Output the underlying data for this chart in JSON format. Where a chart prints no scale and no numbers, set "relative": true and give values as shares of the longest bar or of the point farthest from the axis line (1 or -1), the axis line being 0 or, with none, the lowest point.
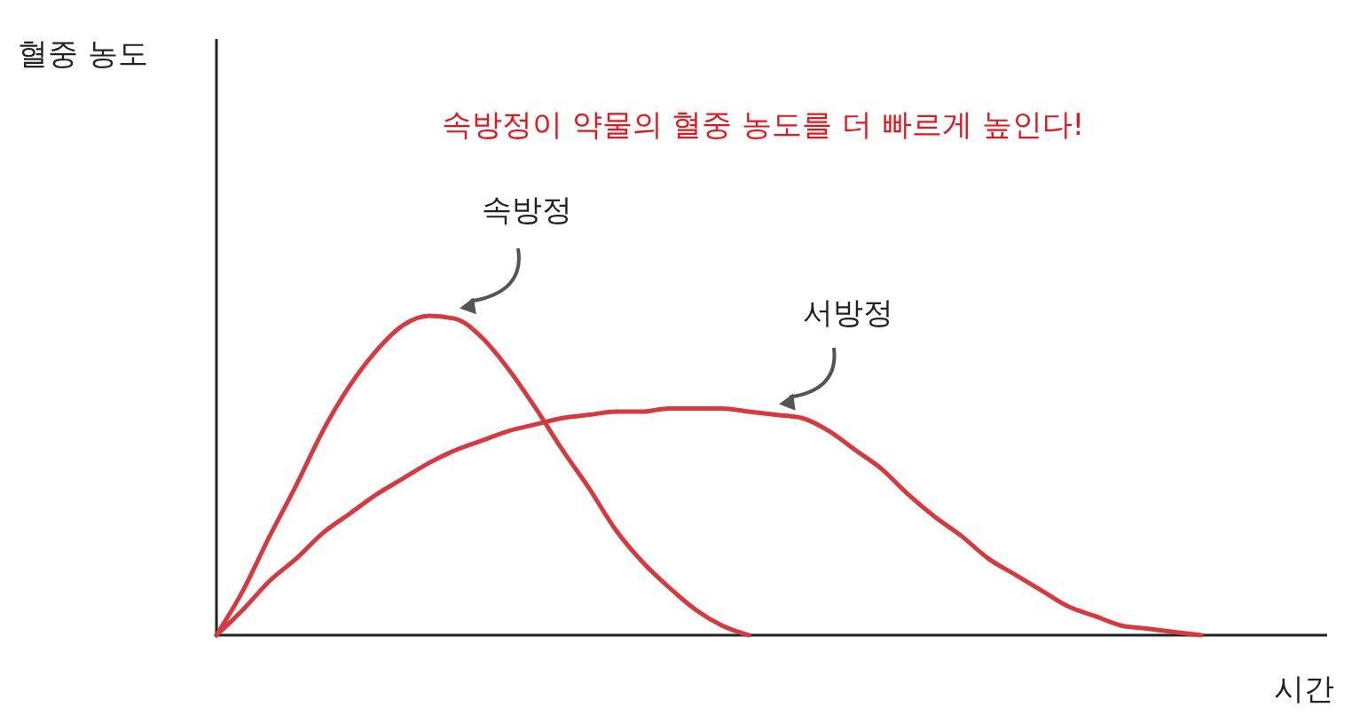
{
  "chart_data": {
    "type": "line",
    "relative": true,
    "title": "속방정이 약물의 혈중 농도를 더 빠르게 높인다!",
    "xlabel": "시간",
    "annotations": [
      "혈중 농도"
    ],
    "legend": false,
    "categories": [
      null,
      null,
      null,
      null,
      null,
      null,
      null,
      null,
      null,
      null,
      null,
      null,
      null,
      null,
      null,
      null,
      null,
      null,
      null,
      null,
      null,
      null,
      null,
      null,
      null,
      null,
      null,
      null,
      null,
      null,
      null,
      null,
      null,
      null,
      null,
      null,
      null,
      null,
      null,
      null,
      null,
      null,
      null
    ],
    "series": [
      {
        "name": "속방정",
        "color": "#d8383e",
        "values": [
          0,
          0.14,
          0.31,
          0.47,
          0.64,
          0.78,
          0.89,
          0.97,
          1,
          0.99,
          0.93,
          0.83,
          0.71,
          0.58,
          0.46,
          0.33,
          0.23,
          0.15,
          0.08,
          0.03,
          0,
          null,
          null,
          null,
          null,
          null,
          null,
          null,
          null,
          null,
          null,
          null,
          null,
          null,
          null,
          null,
          null,
          null,
          null,
          null,
          null,
          null,
          null
        ]
      },
      {
        "name": "서방정",
        "color": "#d8383e",
        "values": [
          0,
          0.08,
          0.17,
          0.24,
          0.32,
          0.38,
          0.44,
          0.49,
          0.54,
          0.58,
          0.61,
          0.64,
          0.66,
          0.68,
          0.69,
          0.7,
          0.7,
          0.71,
          0.71,
          0.71,
          0.7,
          0.69,
          0.68,
          0.64,
          0.58,
          0.52,
          0.44,
          0.37,
          0.31,
          0.24,
          0.19,
          0.14,
          0.09,
          0.06,
          0.03,
          0.02,
          0.01,
          0,
          null,
          null,
          null,
          null,
          null
        ]
      }
    ]
  }
}
